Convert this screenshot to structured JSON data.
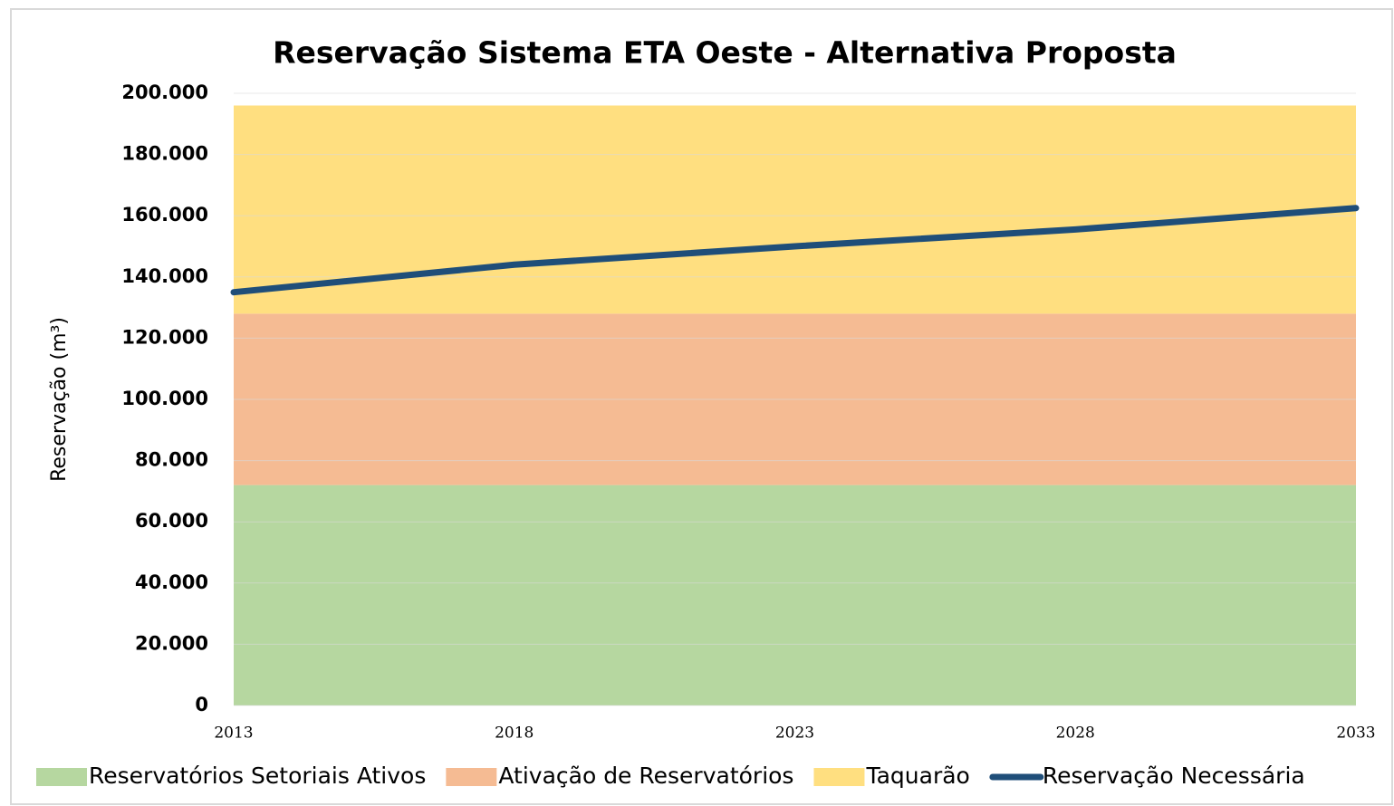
{
  "chart_data": {
    "type": "area",
    "title": "Reservação Sistema ETA Oeste - Alternativa Proposta",
    "ylabel": "Reservação (m³)",
    "x": [
      2013,
      2018,
      2023,
      2028,
      2033
    ],
    "series": [
      {
        "name": "Reservatórios Setoriais Ativos",
        "color": "#b6d7a0",
        "values": [
          72000,
          72000,
          72000,
          72000,
          72000
        ]
      },
      {
        "name": "Ativação de Reservatórios",
        "color": "#f5bb93",
        "values": [
          56000,
          56000,
          56000,
          56000,
          56000
        ]
      },
      {
        "name": "Taquarão",
        "color": "#ffdf80",
        "values": [
          68000,
          68000,
          68000,
          68000,
          68000
        ]
      },
      {
        "name": "Reservação Necessária",
        "color": "#1f4e79",
        "type": "line",
        "values": [
          135000,
          144000,
          150000,
          155500,
          162500
        ]
      }
    ],
    "xlim": [
      2013,
      2033
    ],
    "xticks": [
      2013,
      2018,
      2023,
      2028,
      2033
    ],
    "ylim": [
      0,
      200000
    ],
    "yticks": [
      {
        "value": 0,
        "label": "0"
      },
      {
        "value": 20000,
        "label": "20.000"
      },
      {
        "value": 40000,
        "label": "40.000"
      },
      {
        "value": 60000,
        "label": "60.000"
      },
      {
        "value": 80000,
        "label": "80.000"
      },
      {
        "value": 100000,
        "label": "100.000"
      },
      {
        "value": 120000,
        "label": "120.000"
      },
      {
        "value": 140000,
        "label": "140.000"
      },
      {
        "value": 160000,
        "label": "160.000"
      },
      {
        "value": 180000,
        "label": "180.000"
      },
      {
        "value": 200000,
        "label": "200.000"
      }
    ],
    "grid": true,
    "legend": "bottom"
  }
}
